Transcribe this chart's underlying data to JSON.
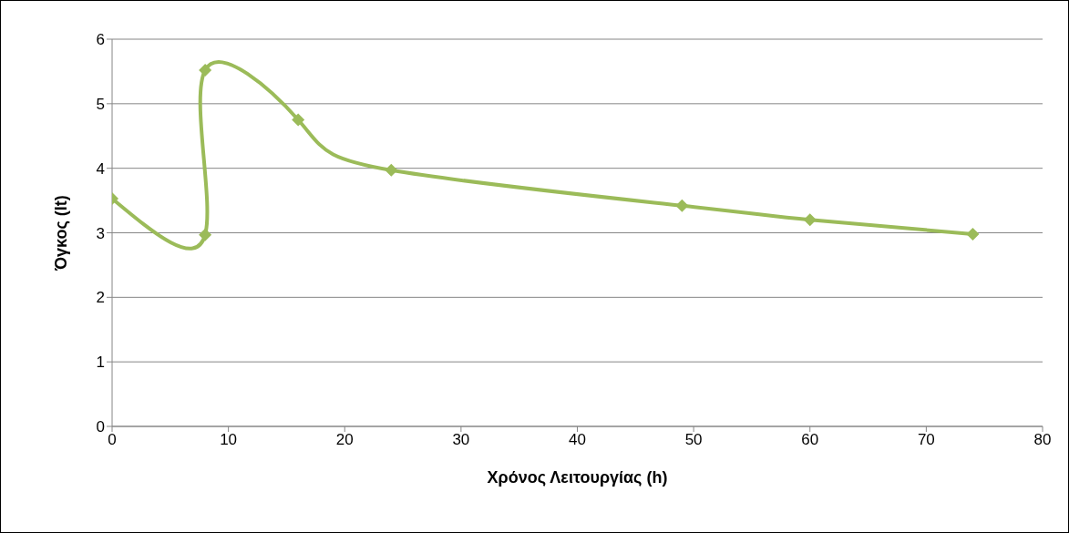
{
  "chart_data": {
    "type": "line",
    "xlabel": "Χρόνος Λειτουργίας (h)",
    "ylabel": "Όγκος (lt)",
    "x": [
      0,
      8,
      8,
      16,
      24,
      49,
      60,
      74
    ],
    "series": [
      {
        "color": "#9bbb59",
        "values": [
          3.53,
          2.97,
          5.52,
          4.75,
          3.97,
          3.42,
          3.2,
          2.98
        ]
      }
    ],
    "xlim": [
      0,
      80
    ],
    "xticks": [
      0,
      10,
      20,
      30,
      40,
      50,
      60,
      70,
      80
    ],
    "ylim": [
      0,
      6
    ],
    "yticks": [
      0,
      1,
      2,
      3,
      4,
      5,
      6
    ],
    "grid": "y",
    "legend": false,
    "marker": "diamond",
    "line_style": "solid"
  }
}
